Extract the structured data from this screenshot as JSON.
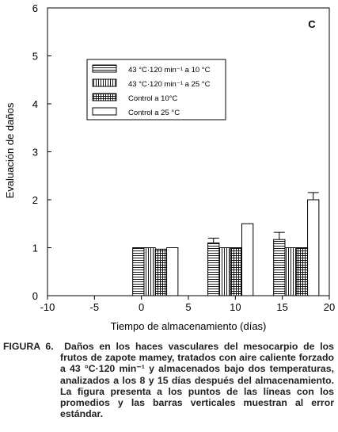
{
  "chart_data": {
    "type": "bar",
    "panel_label": "C",
    "x_label": "Tiempo de almacenamiento (días)",
    "y_label": "Evaluación de daños",
    "x": [
      0,
      8,
      15
    ],
    "series": [
      {
        "name": "43 °C·120 min⁻¹ a 10 °C",
        "color": "#000000",
        "hatch": "horizontal",
        "values": [
          1.0,
          1.1,
          1.17
        ],
        "errors": [
          null,
          0.1,
          0.15
        ]
      },
      {
        "name": "43 °C·120 min⁻¹ a 25 °C",
        "color": "#000000",
        "hatch": "vertical",
        "values": [
          1.0,
          1.0,
          1.0
        ],
        "errors": [
          null,
          null,
          null
        ]
      },
      {
        "name": "Control a 10°C",
        "color": "#000000",
        "hatch": "grid",
        "values": [
          0.97,
          1.0,
          1.0
        ],
        "errors": [
          null,
          null,
          null
        ]
      },
      {
        "name": "Control a 25 °C",
        "color": "#000000",
        "hatch": "none",
        "values": [
          1.0,
          1.5,
          2.0
        ],
        "errors": [
          null,
          null,
          0.15
        ]
      }
    ],
    "xlim": [
      -10,
      20
    ],
    "xticks": [
      -10,
      -5,
      0,
      5,
      10,
      15,
      20
    ],
    "ylim": [
      0,
      6
    ],
    "yticks": [
      0,
      1,
      2,
      3,
      4,
      5,
      6
    ]
  },
  "caption": {
    "label": "FIGURA 6.",
    "text": "Daños en los haces vasculares del mesocarpio de los frutos de zapote mamey, tratados con aire caliente forzado a 43 °C·120 min⁻¹ y almacenados bajo dos temperaturas, analizados a los 8 y 15 días después del almacenamiento. La figura presenta a los puntos de las líneas con los promedios y las barras verticales muestran al error estándar."
  }
}
